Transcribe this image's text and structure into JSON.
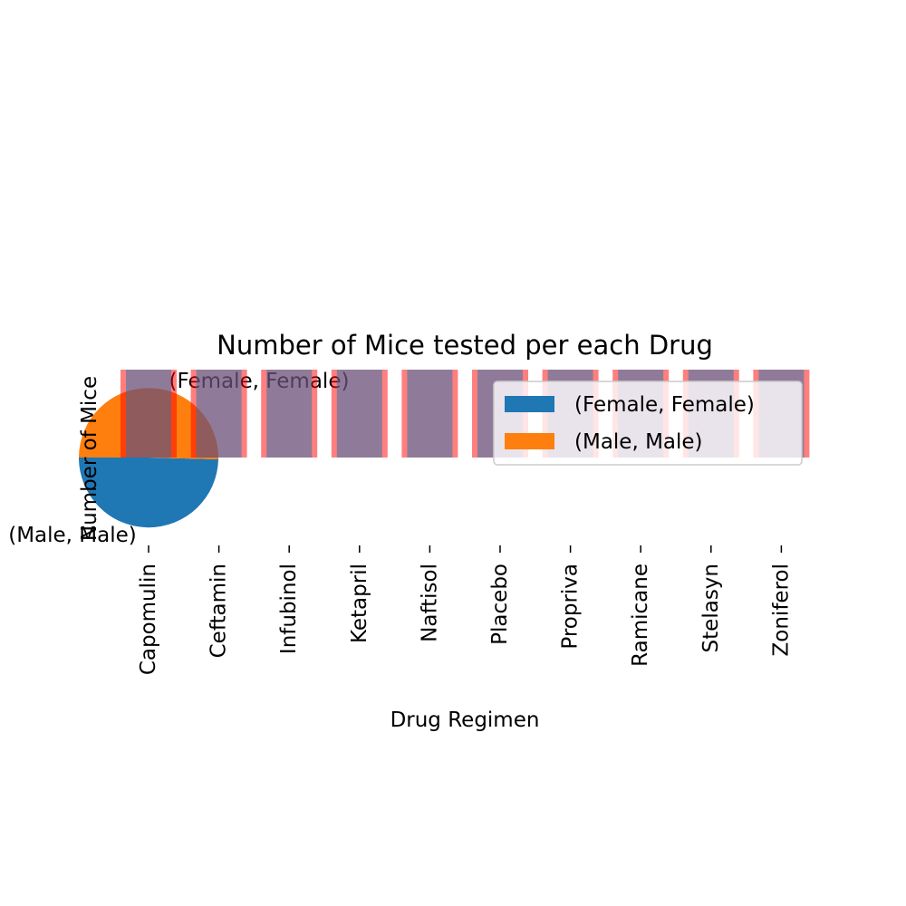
{
  "chart_data": [
    {
      "type": "bar",
      "title": "Number of Mice tested per each Drug",
      "xlabel": "Drug Regimen",
      "ylabel": "Number of Mice",
      "categories": [
        "Capomulin",
        "Ceftamin",
        "Infubinol",
        "Ketapril",
        "Naftisol",
        "Placebo",
        "Propriva",
        "Ramicane",
        "Stelasyn",
        "Zoniferol"
      ],
      "series": [
        {
          "values": [
            25,
            25,
            25,
            25,
            25,
            25,
            25,
            25,
            25,
            25
          ],
          "color": "#ff0000",
          "opacity": 0.5
        },
        {
          "values": [
            25,
            25,
            25,
            25,
            25,
            25,
            25,
            25,
            25,
            25
          ],
          "color": "#1f77b4",
          "opacity": 0.5
        }
      ],
      "ylim": [
        0,
        25
      ],
      "grid": false,
      "y_axis_visible": false
    },
    {
      "type": "pie",
      "slices": [
        {
          "label": "(Female, Female)",
          "value": 49.6,
          "color": "#1f77b4"
        },
        {
          "label": "(Male, Male)",
          "value": 50.4,
          "color": "#ff7f0e"
        }
      ],
      "legend": {
        "placement": "upper-right",
        "entries": [
          "(Female, Female)",
          "(Male, Male)"
        ]
      }
    }
  ]
}
